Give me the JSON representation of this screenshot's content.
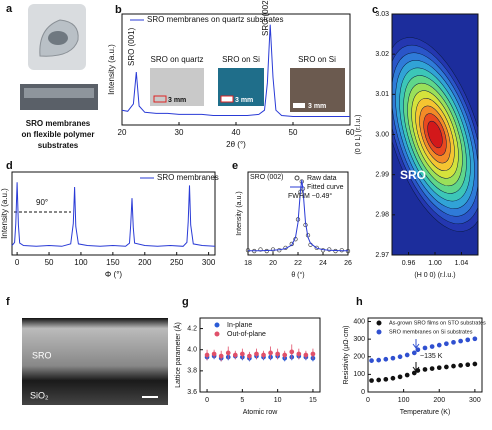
{
  "figure": {
    "a": {
      "label": "a",
      "caption": [
        "SRO membranes",
        "on flexible polymer",
        "substrates"
      ]
    },
    "f": {
      "label": "f",
      "layers": [
        "SRO",
        "SiO₂"
      ]
    }
  },
  "chart_data": [
    {
      "type": "line",
      "panel_label": "b",
      "xlabel": "2θ (°)",
      "ylabel": "Intensity (a.u.)",
      "xlim": [
        20,
        60
      ],
      "xticks": [
        20,
        30,
        40,
        50,
        60
      ],
      "ylim": [
        0,
        1.05
      ],
      "x": [
        20,
        21,
        22,
        22.5,
        23,
        24,
        26,
        28,
        30,
        32,
        34,
        36,
        38,
        40,
        42,
        44,
        45,
        45.5,
        46,
        46.5,
        47,
        48,
        50,
        52,
        54,
        56,
        58,
        60
      ],
      "series": [
        {
          "name": "SRO membranes on quartz substrates",
          "color": "#2a3bd6",
          "values": [
            0.14,
            0.13,
            0.2,
            0.5,
            0.18,
            0.12,
            0.11,
            0.11,
            0.1,
            0.1,
            0.1,
            0.09,
            0.09,
            0.09,
            0.09,
            0.1,
            0.14,
            0.4,
            0.95,
            0.45,
            0.14,
            0.09,
            0.08,
            0.08,
            0.08,
            0.08,
            0.08,
            0.08
          ]
        }
      ],
      "annotations": [
        "SRO (001)",
        "SRO (002)"
      ],
      "insets": [
        {
          "label": "SRO on quartz",
          "scale": "3 mm"
        },
        {
          "label": "SRO on Si",
          "scale": "3 mm"
        },
        {
          "label": "SRO on Si",
          "scale": "3 mm"
        }
      ]
    },
    {
      "type": "contour",
      "panel_label": "c",
      "xlabel": "(H 0 0) (r.l.u.)",
      "ylabel": "(0 0 L) (r.l.u.)",
      "xlim": [
        0.935,
        1.065
      ],
      "xticks": [
        0.96,
        {
          "value": 1,
          "label": "1.00"
        },
        1.04
      ],
      "ylim": [
        2.97,
        3.03
      ],
      "yticks": [
        2.97,
        2.98,
        2.99,
        {
          "value": 3,
          "label": "3.00"
        },
        3.01,
        3.02,
        3.03
      ],
      "peak": {
        "x": 1.0,
        "y": 3.0
      },
      "annotations": [
        "SRO"
      ]
    },
    {
      "type": "line",
      "panel_label": "d",
      "xlabel": "Φ (°)",
      "ylabel": "Intensity (a.u.)",
      "xlim": [
        -8,
        310
      ],
      "xticks": [
        0,
        50,
        100,
        150,
        200,
        250,
        300
      ],
      "ylim": [
        0,
        1.05
      ],
      "x": [
        -8,
        -4,
        -2,
        0,
        2,
        4,
        10,
        30,
        50,
        70,
        84,
        88,
        90,
        92,
        96,
        110,
        130,
        150,
        170,
        176,
        178,
        180,
        182,
        184,
        200,
        220,
        240,
        260,
        266,
        268,
        270,
        272,
        276,
        290,
        310
      ],
      "series": [
        {
          "name": "SRO membranes",
          "color": "#2a3bd6",
          "values": [
            0.12,
            0.16,
            0.4,
            0.92,
            0.38,
            0.15,
            0.12,
            0.11,
            0.12,
            0.11,
            0.14,
            0.4,
            0.86,
            0.36,
            0.14,
            0.12,
            0.11,
            0.12,
            0.11,
            0.15,
            0.38,
            0.72,
            0.34,
            0.15,
            0.12,
            0.11,
            0.12,
            0.11,
            0.16,
            0.42,
            0.88,
            0.38,
            0.14,
            0.12,
            0.11
          ]
        }
      ],
      "annotations": [
        "90°"
      ]
    },
    {
      "type": "line",
      "panel_label": "e",
      "xlabel": "θ (°)",
      "ylabel": "Intensity (a.u.)",
      "xlim": [
        18,
        26
      ],
      "xticks": [
        18,
        20,
        22,
        24,
        26
      ],
      "ylim": [
        0,
        1.05
      ],
      "x": [
        18,
        18.5,
        19,
        19.5,
        20,
        20.5,
        21,
        21.5,
        21.8,
        22,
        22.2,
        22.3,
        22.4,
        22.6,
        22.8,
        23,
        23.5,
        24,
        24.5,
        25,
        25.5,
        26
      ],
      "series": [
        {
          "name": "Raw data",
          "color": "#444444",
          "mode": "markers",
          "values": [
            0.06,
            0.05,
            0.07,
            0.05,
            0.07,
            0.06,
            0.09,
            0.14,
            0.2,
            0.45,
            0.8,
            0.93,
            0.84,
            0.38,
            0.25,
            0.13,
            0.09,
            0.06,
            0.07,
            0.05,
            0.06,
            0.05
          ]
        },
        {
          "name": "Fitted curve",
          "color": "#2a3bd6",
          "mode": "line",
          "values": [
            0.053,
            0.054,
            0.055,
            0.057,
            0.06,
            0.066,
            0.081,
            0.127,
            0.224,
            0.41,
            0.82,
            0.95,
            0.82,
            0.41,
            0.224,
            0.148,
            0.086,
            0.068,
            0.061,
            0.057,
            0.055,
            0.054
          ]
        }
      ],
      "annotations": [
        "SRO (002)",
        "FWHM ~0.49°"
      ]
    },
    {
      "type": "scatter",
      "panel_label": "g",
      "xlabel": "Atomic row",
      "ylabel": "Lattice parameter (Å)",
      "xlim": [
        -1,
        16
      ],
      "xticks": [
        0,
        5,
        10,
        15
      ],
      "ylim": [
        3.6,
        4.3
      ],
      "yticks": [
        3.6,
        3.8,
        {
          "value": 4,
          "label": "4.0"
        },
        4.2
      ],
      "x": [
        0,
        1,
        2,
        3,
        4,
        5,
        6,
        7,
        8,
        9,
        10,
        11,
        12,
        13,
        14,
        15
      ],
      "series": [
        {
          "name": "In-plane",
          "color": "#2a5bd6",
          "values": [
            3.93,
            3.94,
            3.92,
            3.93,
            3.94,
            3.93,
            3.92,
            3.94,
            3.93,
            3.93,
            3.94,
            3.92,
            3.93,
            3.94,
            3.93,
            3.92
          ],
          "errors": [
            0.03,
            0.03,
            0.03,
            0.03,
            0.03,
            0.03,
            0.03,
            0.03,
            0.03,
            0.03,
            0.03,
            0.03,
            0.03,
            0.03,
            0.03,
            0.03
          ]
        },
        {
          "name": "Out-of-plane",
          "color": "#e0506a",
          "values": [
            3.95,
            3.96,
            3.94,
            3.97,
            3.95,
            3.96,
            3.94,
            3.96,
            3.95,
            3.97,
            3.96,
            3.95,
            3.98,
            3.96,
            3.95,
            3.96
          ],
          "errors": [
            0.05,
            0.04,
            0.05,
            0.06,
            0.04,
            0.05,
            0.04,
            0.05,
            0.04,
            0.06,
            0.05,
            0.04,
            0.07,
            0.05,
            0.04,
            0.05
          ]
        }
      ]
    },
    {
      "type": "scatter",
      "panel_label": "h",
      "xlabel": "Temperature (K)",
      "ylabel": "Resistivity (μΩ·cm)",
      "xlim": [
        0,
        320
      ],
      "xticks": [
        0,
        100,
        200,
        300
      ],
      "ylim": [
        0,
        420
      ],
      "yticks": [
        0,
        100,
        200,
        300,
        400
      ],
      "x": [
        10,
        30,
        50,
        70,
        90,
        110,
        130,
        140,
        160,
        180,
        200,
        220,
        240,
        260,
        280,
        300
      ],
      "series": [
        {
          "name": "As-grown SRO films on STO substrates",
          "color": "#111111",
          "values": [
            65,
            68,
            72,
            78,
            86,
            96,
            108,
            122,
            128,
            133,
            138,
            142,
            147,
            151,
            155,
            159
          ]
        },
        {
          "name": "SRO membranes on Si substrates",
          "color": "#3050d0",
          "values": [
            178,
            181,
            186,
            192,
            200,
            210,
            222,
            240,
            250,
            258,
            266,
            274,
            282,
            289,
            296,
            302
          ]
        }
      ],
      "annotations": [
        "~135 K"
      ]
    }
  ]
}
